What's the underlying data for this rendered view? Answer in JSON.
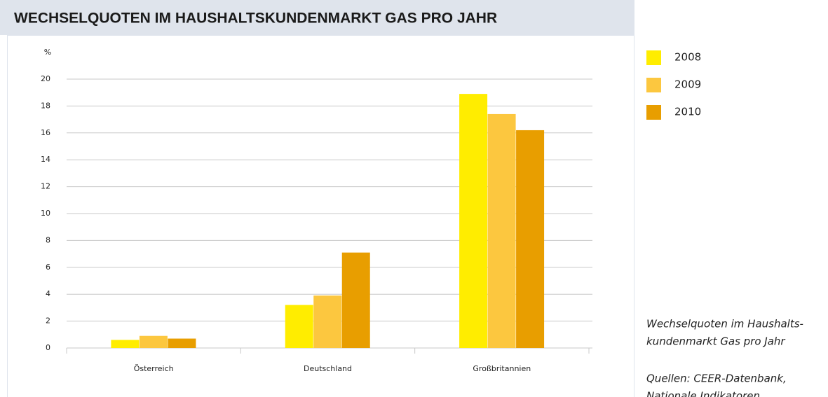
{
  "chart_data": {
    "type": "bar",
    "title": "WECHSELQUOTEN IM HAUSHALTSKUNDENMARKT GAS PRO JAHR",
    "y_unit": "%",
    "categories": [
      "Österreich",
      "Deutschland",
      "Großbritannien"
    ],
    "series": [
      {
        "name": "2008",
        "color": "#ffed00",
        "values": [
          0.6,
          3.2,
          18.9
        ]
      },
      {
        "name": "2009",
        "color": "#fcc73f",
        "values": [
          0.9,
          3.9,
          17.4
        ]
      },
      {
        "name": "2010",
        "color": "#e89e00",
        "values": [
          0.7,
          7.1,
          16.2
        ]
      }
    ],
    "ylim": [
      0,
      20
    ],
    "yticks": [
      0,
      2,
      4,
      6,
      8,
      10,
      12,
      14,
      16,
      18,
      20
    ],
    "grid": true,
    "notes": [
      "Wechselquoten im Haushalts-",
      "kundenmarkt Gas pro Jahr",
      "Quellen: CEER-Datenbank,",
      "Nationale Indikatoren"
    ]
  }
}
